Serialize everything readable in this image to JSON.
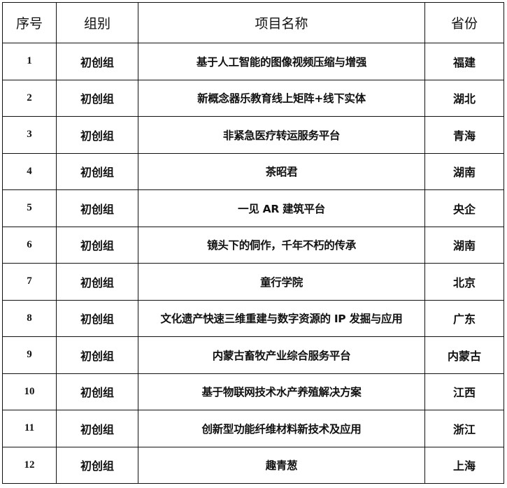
{
  "headers": [
    "序号",
    "组别",
    "项目名称",
    "省份"
  ],
  "rows": [
    {
      "no": "1",
      "group": "初创组",
      "project": "基于人工智能的图像视频压缩与增强",
      "province": "福建"
    },
    {
      "no": "2",
      "group": "初创组",
      "project": "新概念器乐教育线上矩阵+线下实体",
      "province": "湖北"
    },
    {
      "no": "3",
      "group": "初创组",
      "project": "非紧急医疗转运服务平台",
      "province": "青海"
    },
    {
      "no": "4",
      "group": "初创组",
      "project": "茶昭君",
      "province": "湖南"
    },
    {
      "no": "5",
      "group": "初创组",
      "project": "一见 AR 建筑平台",
      "province": "央企"
    },
    {
      "no": "6",
      "group": "初创组",
      "project": "镜头下的侗作，千年不朽的传承",
      "province": "湖南"
    },
    {
      "no": "7",
      "group": "初创组",
      "project": "童行学院",
      "province": "北京"
    },
    {
      "no": "8",
      "group": "初创组",
      "project": "文化遗产快速三维重建与数字资源的 IP 发掘与应用",
      "province": "广东"
    },
    {
      "no": "9",
      "group": "初创组",
      "project": "内蒙古畜牧产业综合服务平台",
      "province": "内蒙古"
    },
    {
      "no": "10",
      "group": "初创组",
      "project": "基于物联网技术水产养殖解决方案",
      "province": "江西"
    },
    {
      "no": "11",
      "group": "初创组",
      "project": "创新型功能纤维材料新技术及应用",
      "province": "浙江"
    },
    {
      "no": "12",
      "group": "初创组",
      "project": "趣青葱",
      "province": "上海"
    }
  ]
}
